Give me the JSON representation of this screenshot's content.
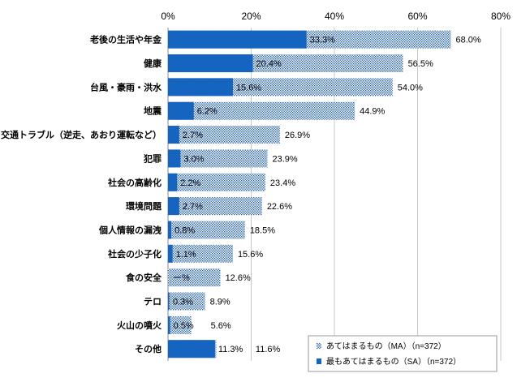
{
  "chart_data": {
    "type": "bar",
    "orientation": "horizontal",
    "categories": [
      "老後の生活や年金",
      "健康",
      "台風・豪雨・洪水",
      "地震",
      "交通トラブル（逆走、あおり運転など）",
      "犯罪",
      "社会の高齢化",
      "環境問題",
      "個人情報の漏洩",
      "社会の少子化",
      "食の安全",
      "テロ",
      "火山の噴火",
      "その他"
    ],
    "series": [
      {
        "name": "あてはまるもの（MA）（n=372）",
        "values": [
          68.0,
          56.5,
          54.0,
          44.9,
          26.9,
          23.9,
          23.4,
          22.6,
          18.5,
          15.6,
          12.6,
          8.9,
          5.6,
          11.6
        ],
        "labels": [
          "68.0%",
          "56.5%",
          "54.0%",
          "44.9%",
          "26.9%",
          "23.9%",
          "23.4%",
          "22.6%",
          "18.5%",
          "15.6%",
          "12.6%",
          "8.9%",
          "5.6%",
          "11.6%"
        ],
        "pattern": "dotted",
        "color": "#1565c0"
      },
      {
        "name": "最もあてはまるもの（SA）（n=372）",
        "values": [
          33.3,
          20.4,
          15.6,
          6.2,
          2.7,
          3.0,
          2.2,
          2.7,
          0.8,
          1.1,
          0,
          0.3,
          0.5,
          11.3
        ],
        "labels": [
          "33.3%",
          "20.4%",
          "15.6%",
          "6.2%",
          "2.7%",
          "3.0%",
          "2.2%",
          "2.7%",
          "0.8%",
          "1.1%",
          "ー%",
          "0.3%",
          "0.5%",
          "11.3%"
        ],
        "color": "#1565c0"
      }
    ],
    "xlim": [
      0,
      80
    ],
    "ticks": [
      0,
      20,
      40,
      60,
      80
    ],
    "tick_labels": [
      "0%",
      "20%",
      "40%",
      "60%",
      "80%"
    ],
    "axis_position": "top",
    "grid": true,
    "legend_position": "bottom-right"
  }
}
